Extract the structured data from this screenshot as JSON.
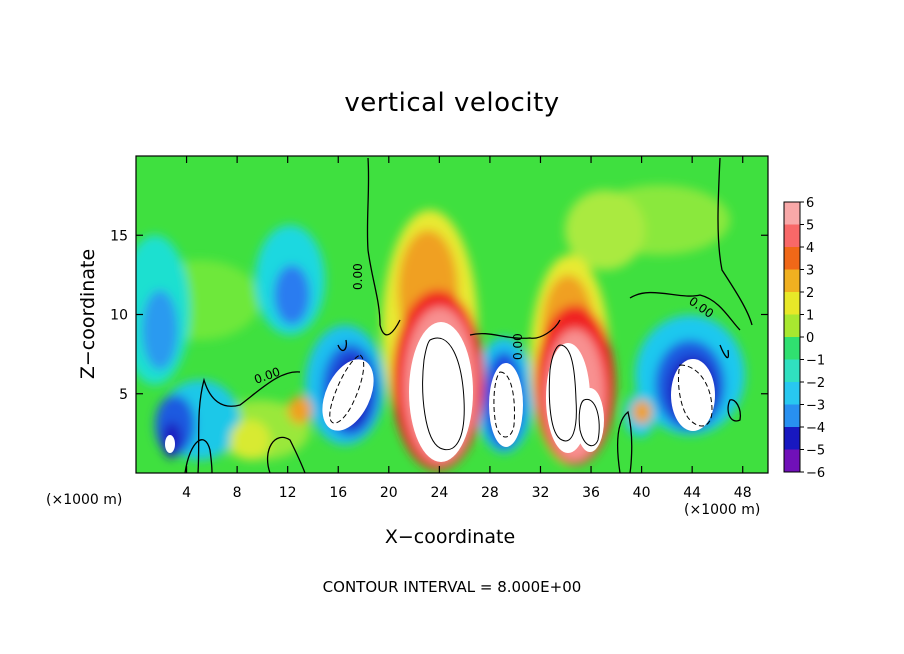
{
  "chart_data": {
    "type": "heatmap",
    "title": "vertical velocity",
    "xlabel": "X−coordinate",
    "ylabel": "Z−coordinate",
    "x_unit": "(×1000 m)",
    "x_ticks": [
      4,
      8,
      12,
      16,
      20,
      24,
      28,
      32,
      36,
      40,
      44,
      48
    ],
    "y_ticks": [
      5,
      10,
      15
    ],
    "xlim": [
      0,
      50
    ],
    "ylim": [
      0,
      20
    ],
    "colorbar_ticks": [
      6,
      5,
      4,
      3,
      2,
      1,
      0,
      -1,
      -2,
      -3,
      -4,
      -5,
      -6
    ],
    "colorbar_ticklabels": [
      "6",
      "5",
      "4",
      "3",
      "2",
      "1",
      "0",
      "−1",
      "−2",
      "−3",
      "−4",
      "−5",
      "−6"
    ],
    "colorbar_range": [
      -6,
      6
    ],
    "contour_interval_text": "CONTOUR INTERVAL = 8.000E+00",
    "contour_labels": [
      "0.00",
      "0.00",
      "0.00",
      "0.00"
    ],
    "features": [
      {
        "kind": "updraft",
        "x": 24,
        "z": 6,
        "w": 10
      },
      {
        "kind": "updraft",
        "x": 34,
        "z": 6,
        "w": 9
      },
      {
        "kind": "downdraft",
        "x": 29,
        "z": 4,
        "w": -9
      },
      {
        "kind": "downdraft",
        "x": 17.5,
        "z": 5,
        "w": -9
      },
      {
        "kind": "downdraft",
        "x": 44,
        "z": 5,
        "w": -8
      },
      {
        "kind": "downdraft",
        "x": 2.5,
        "z": 2,
        "w": -6
      }
    ]
  }
}
